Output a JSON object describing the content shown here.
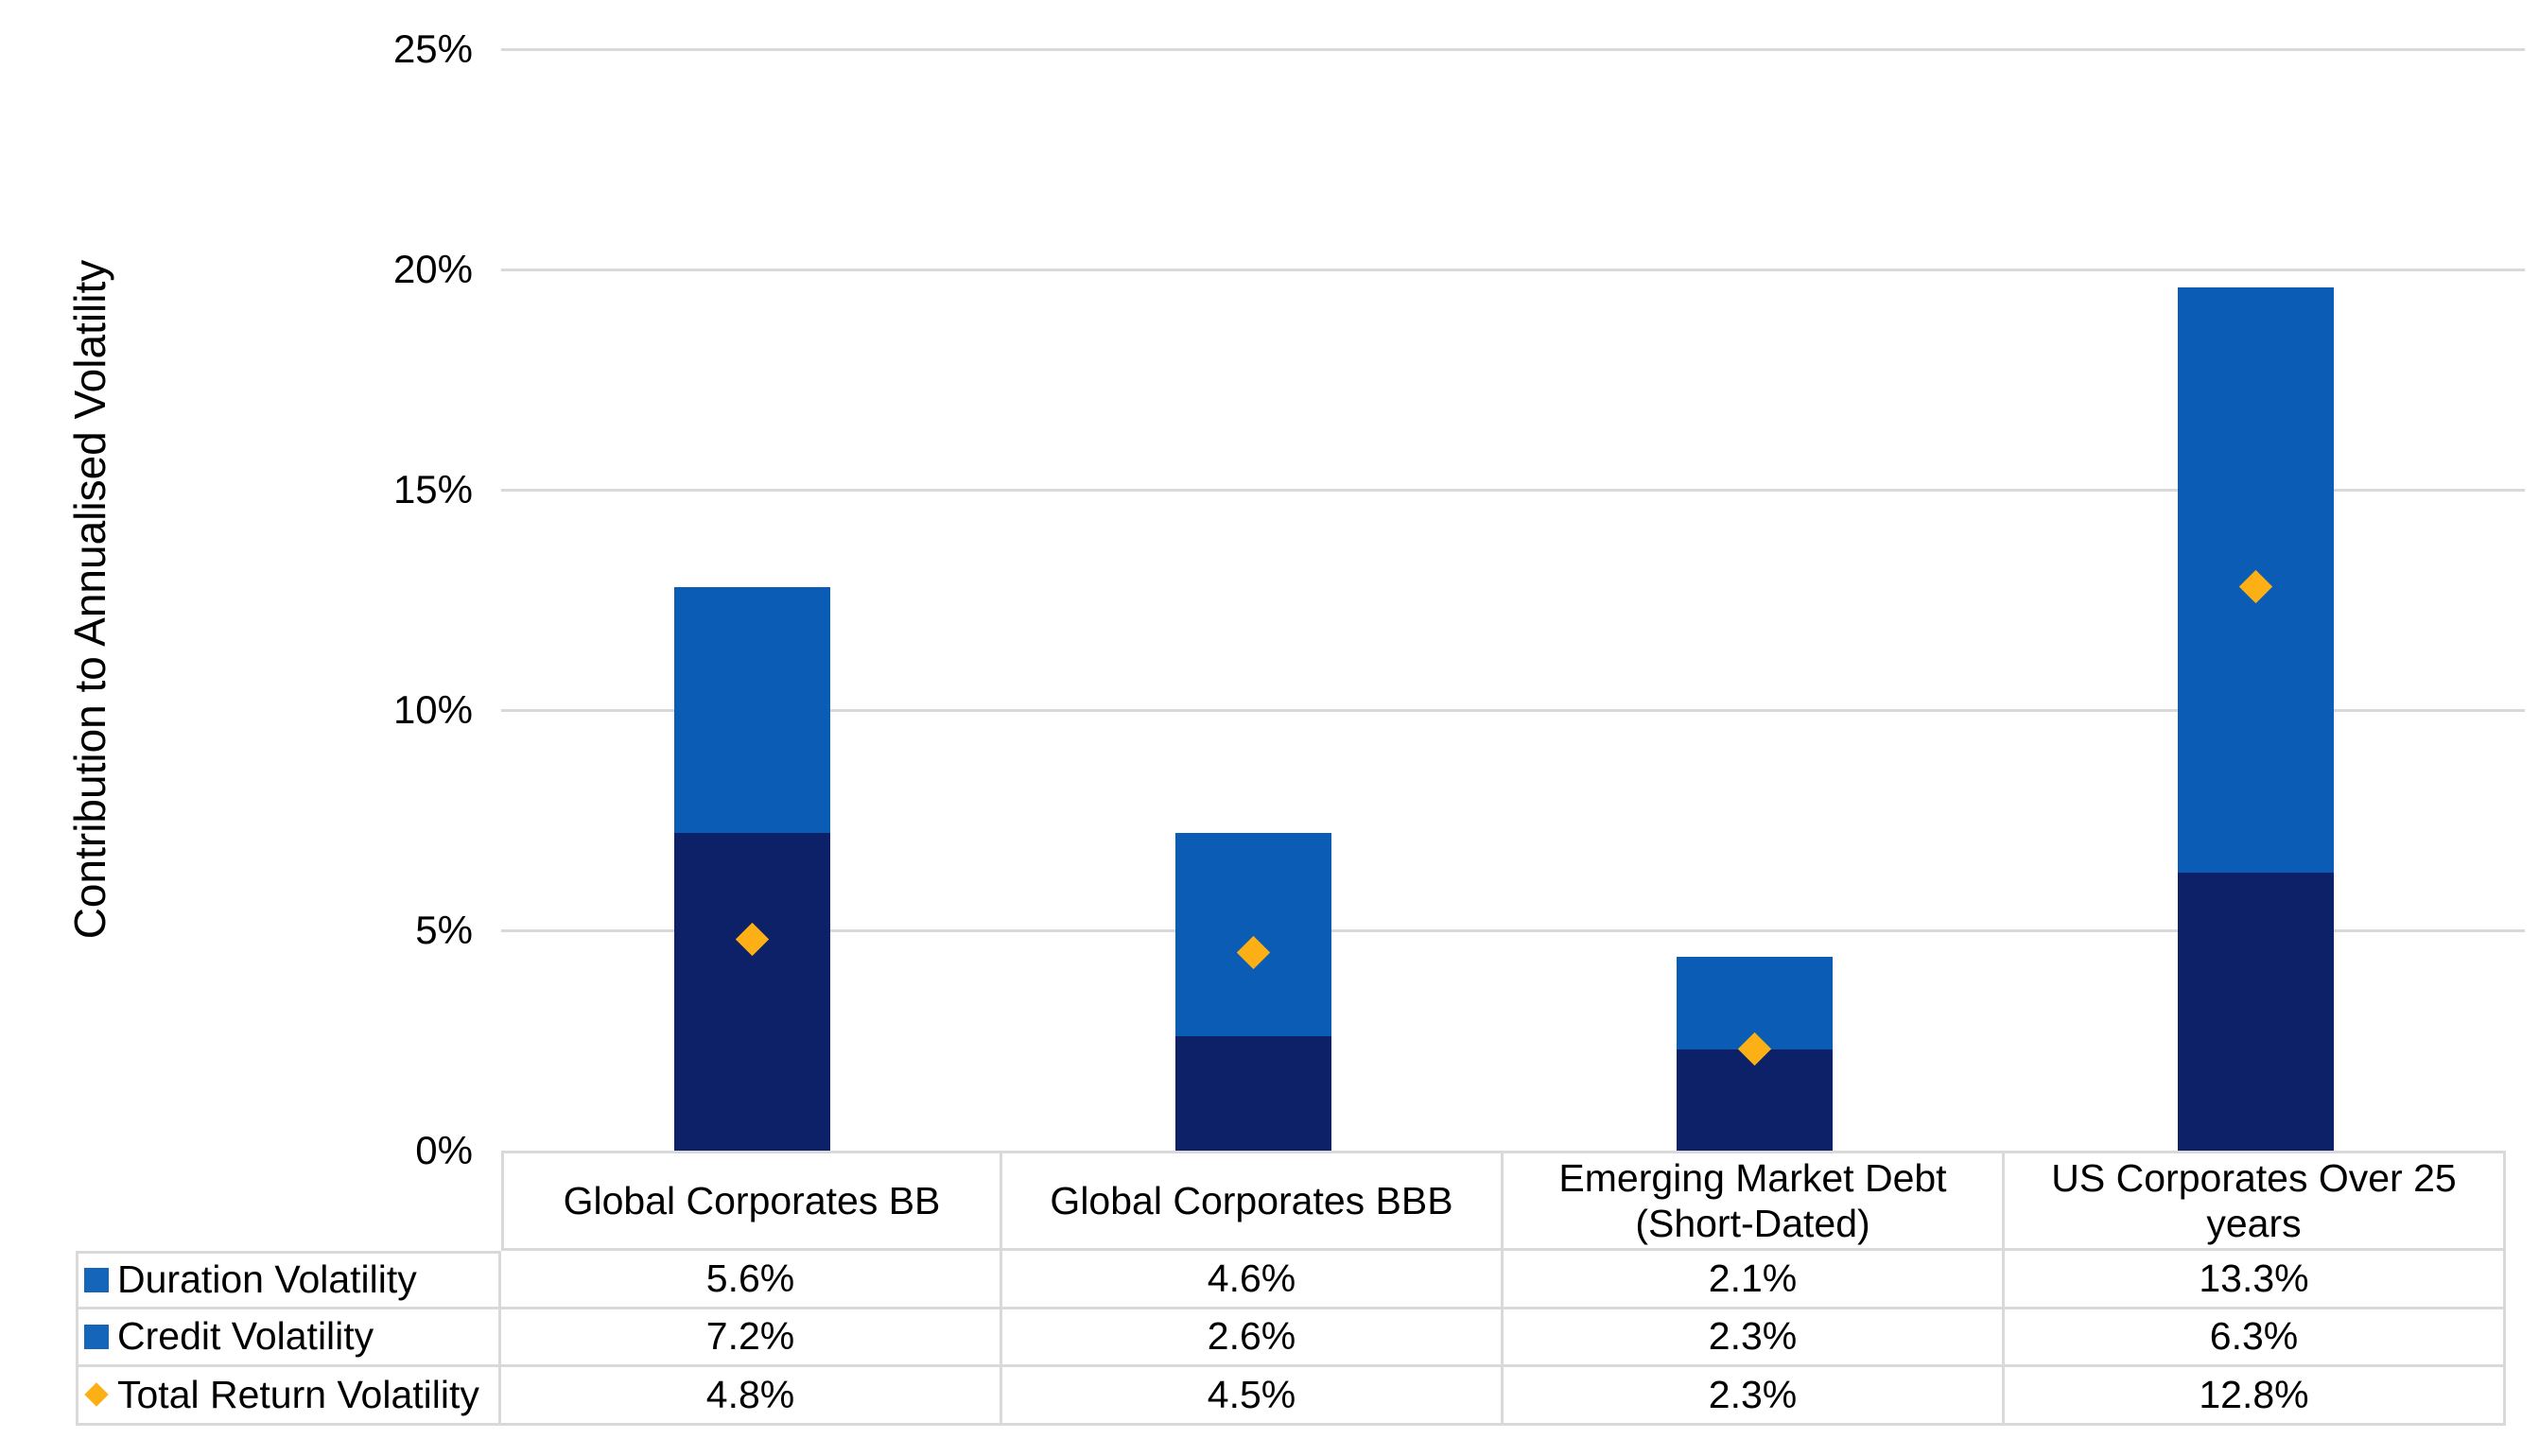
{
  "chart_data": {
    "type": "bar",
    "subtype": "stacked-column-with-diamond-markers",
    "title": "",
    "xlabel": "",
    "ylabel": "Contribution to Annualised Volatility",
    "ylim": [
      0,
      25
    ],
    "grid": "horizontal",
    "legend_position": "table-left-column",
    "stack_bottom_to_top": [
      "Credit Volatility",
      "Duration Volatility"
    ],
    "ytick_values": [
      0,
      5,
      10,
      15,
      20,
      25
    ],
    "ytick_labels": [
      "0%",
      "5%",
      "10%",
      "15%",
      "20%",
      "25%"
    ],
    "categories": [
      "Global Corporates BB",
      "Global Corporates BBB",
      "Emerging Market Debt (Short-Dated)",
      "US Corporates Over 25 years"
    ],
    "series": [
      {
        "name": "Duration Volatility",
        "role": "bar-segment",
        "stack_position": "top",
        "swatch_shape": "square",
        "color": "#0A5CB4",
        "swatch_color": "#1565BB",
        "values": [
          5.6,
          4.6,
          2.1,
          13.3
        ],
        "labels": [
          "5.6%",
          "4.6%",
          "2.1%",
          "13.3%"
        ]
      },
      {
        "name": "Credit Volatility",
        "role": "bar-segment",
        "stack_position": "bottom",
        "swatch_shape": "square",
        "color": "#0C2167",
        "swatch_color": "#1565BB",
        "values": [
          7.2,
          2.6,
          2.3,
          6.3
        ],
        "labels": [
          "7.2%",
          "2.6%",
          "2.3%",
          "6.3%"
        ]
      },
      {
        "name": "Total Return Volatility",
        "role": "diamond-marker",
        "swatch_shape": "diamond",
        "color": "#FCB015",
        "swatch_color": "#FCB015",
        "values": [
          4.8,
          4.5,
          2.3,
          12.8
        ],
        "labels": [
          "4.8%",
          "4.5%",
          "2.3%",
          "12.8%"
        ]
      }
    ],
    "colors": {
      "gridline": "#D9D9D9",
      "table_border": "#D9D9D9",
      "text": "#000000",
      "background": "#FFFFFF"
    }
  }
}
